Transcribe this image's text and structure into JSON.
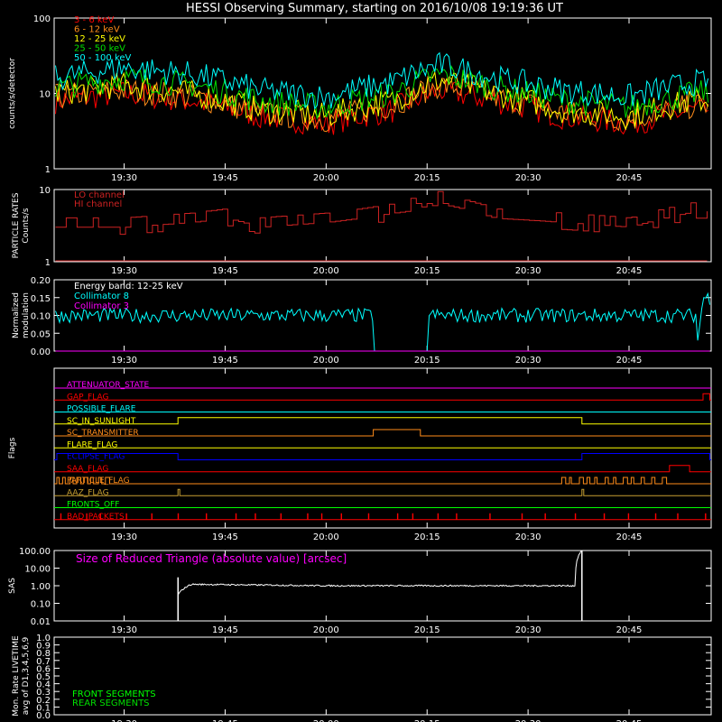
{
  "title": "HESSI Observing Summary, starting on 2016/10/08 19:19:36 UT",
  "time_ticks": [
    "19:30",
    "19:45",
    "20:00",
    "20:15",
    "20:30",
    "20:45"
  ],
  "colors": {
    "axes": "#ffffff",
    "red": "#ff0000",
    "orange": "#ff8c1a",
    "yellow": "#ffff00",
    "green": "#00e000",
    "cyan": "#00ffff",
    "magenta": "#ff00ff",
    "blue": "#0000ff",
    "darkred": "#cc2222",
    "lime": "#00ff00",
    "olive": "#c8a032"
  },
  "chart_data": [
    {
      "type": "line",
      "ylabel": "counts/s/detector",
      "scale": "log",
      "ylim": [
        1,
        100
      ],
      "y_ticks": [
        "1",
        "10",
        "100"
      ],
      "legend": [
        {
          "label": "3 - 6 keV",
          "color": "red"
        },
        {
          "label": "6 - 12 keV",
          "color": "orange"
        },
        {
          "label": "12 - 25 keV",
          "color": "yellow"
        },
        {
          "label": "25 - 50 keV",
          "color": "green"
        },
        {
          "label": "50 - 100 keV",
          "color": "cyan"
        }
      ],
      "series": [
        {
          "name": "3 - 6 keV",
          "color": "red",
          "x": [
            "19:20",
            "19:30",
            "19:40",
            "19:50",
            "20:00",
            "20:10",
            "20:17",
            "20:25",
            "20:35",
            "20:45",
            "20:55"
          ],
          "values": [
            8,
            10,
            8,
            5,
            4,
            6,
            11,
            8,
            5,
            4,
            6
          ]
        },
        {
          "name": "6 - 12 keV",
          "color": "orange",
          "x": [
            "19:20",
            "19:30",
            "19:40",
            "19:50",
            "20:00",
            "20:10",
            "20:17",
            "20:25",
            "20:35",
            "20:45",
            "20:55"
          ],
          "values": [
            9,
            11,
            9,
            5.5,
            4.5,
            7,
            13,
            9,
            5.5,
            4.5,
            7
          ]
        },
        {
          "name": "12 - 25 keV",
          "color": "yellow",
          "x": [
            "19:20",
            "19:30",
            "19:40",
            "19:50",
            "20:00",
            "20:10",
            "20:17",
            "20:25",
            "20:35",
            "20:45",
            "20:55"
          ],
          "values": [
            10,
            13,
            10,
            6,
            5,
            8,
            15,
            10,
            6,
            5,
            8
          ]
        },
        {
          "name": "25 - 50 keV",
          "color": "green",
          "x": [
            "19:20",
            "19:30",
            "19:40",
            "19:50",
            "20:00",
            "20:10",
            "20:17",
            "20:25",
            "20:35",
            "20:45",
            "20:55"
          ],
          "values": [
            12,
            16,
            13,
            8,
            6.5,
            10,
            18,
            12,
            8,
            6.5,
            10
          ]
        },
        {
          "name": "50 - 100 keV",
          "color": "cyan",
          "x": [
            "19:20",
            "19:30",
            "19:40",
            "19:50",
            "20:00",
            "20:10",
            "20:17",
            "20:25",
            "20:35",
            "20:45",
            "20:55"
          ],
          "values": [
            16,
            22,
            18,
            11,
            9,
            14,
            24,
            16,
            11,
            9,
            14
          ]
        }
      ]
    },
    {
      "type": "line",
      "ylabel": "PARTICLE RATES",
      "ylabel2": "Counts/s",
      "scale": "log",
      "ylim": [
        1,
        10
      ],
      "y_ticks": [
        "1",
        "10"
      ],
      "legend": [
        {
          "label": "LO channel",
          "color": "darkred"
        },
        {
          "label": "HI channel",
          "color": "darkred"
        }
      ],
      "series": [
        {
          "name": "LO channel",
          "color": "darkred",
          "x": [
            "19:20",
            "19:30",
            "19:40",
            "19:45",
            "19:50",
            "20:00",
            "20:05",
            "20:12",
            "20:15",
            "20:18",
            "20:25",
            "20:35",
            "20:45",
            "20:50",
            "20:55"
          ],
          "values": [
            3,
            3,
            3.5,
            4,
            3,
            3.5,
            4,
            5,
            8,
            6,
            4,
            3.5,
            3,
            4,
            5
          ]
        },
        {
          "name": "HI channel",
          "color": "darkred",
          "x": [
            "19:20",
            "20:55"
          ],
          "values": [
            1,
            1
          ]
        }
      ]
    },
    {
      "type": "line",
      "ylabel": "Normalized",
      "ylabel2": "modulation",
      "ylim": [
        0.0,
        0.2
      ],
      "y_ticks": [
        "0.00",
        "0.05",
        "0.10",
        "0.15",
        "0.20"
      ],
      "annotations": [
        "Energy band: 12-25 keV"
      ],
      "legend": [
        {
          "label": "Collimator 8",
          "color": "cyan"
        },
        {
          "label": "Collimator 3",
          "color": "magenta"
        }
      ],
      "series": [
        {
          "name": "Collimator 8",
          "color": "cyan",
          "x": [
            "19:20",
            "19:35",
            "19:50",
            "20:07",
            "20:07",
            "20:15",
            "20:15",
            "20:30",
            "20:45",
            "20:55",
            "20:55",
            "20:56"
          ],
          "values": [
            0.1,
            0.1,
            0.1,
            0.1,
            0.0,
            0.0,
            0.1,
            0.1,
            0.1,
            0.1,
            0.0,
            0.15
          ]
        },
        {
          "name": "Collimator 3",
          "color": "magenta",
          "x": [
            "19:20",
            "20:57"
          ],
          "values": [
            0.0,
            0.0
          ]
        }
      ]
    },
    {
      "type": "line",
      "ylabel": "Flags",
      "flags": [
        {
          "label": "ATTENUATOR_STATE",
          "color": "magenta",
          "on": []
        },
        {
          "label": "GAP_FLAG",
          "color": "red",
          "on": [
            [
              "20:56",
              "20:57"
            ]
          ]
        },
        {
          "label": "POSSIBLE_FLARE",
          "color": "cyan",
          "on": []
        },
        {
          "label": "SC_IN_SUNLIGHT",
          "color": "yellow",
          "on": [
            [
              "19:38",
              "20:38"
            ]
          ]
        },
        {
          "label": "SC_TRANSMITTER",
          "color": "orange",
          "on": [
            [
              "20:07",
              "20:14"
            ]
          ]
        },
        {
          "label": "FLARE_FLAG",
          "color": "yellow",
          "on": []
        },
        {
          "label": "ECLIPSE_FLAG",
          "color": "blue",
          "on": [
            [
              "19:20",
              "19:38"
            ],
            [
              "20:38",
              "20:57"
            ]
          ]
        },
        {
          "label": "SAA_FLAG",
          "color": "red",
          "on": [
            [
              "20:51",
              "20:54"
            ]
          ]
        },
        {
          "label": "PARTICLE_FLAG",
          "color": "orange",
          "on": [
            [
              "19:20",
              "19:28"
            ],
            [
              "20:35",
              "20:50"
            ]
          ]
        },
        {
          "label": "AAZ_FLAG",
          "color": "olive",
          "on": [
            [
              "19:38",
              "19:38"
            ],
            [
              "20:38",
              "20:38"
            ]
          ]
        },
        {
          "label": "FRONTS_OFF",
          "color": "lime",
          "on": []
        },
        {
          "label": "BAD_PACKETS",
          "color": "red",
          "on": [
            [
              "19:20",
              "20:57"
            ]
          ]
        }
      ]
    },
    {
      "type": "line",
      "ylabel": "SAS",
      "scale": "log",
      "ylim": [
        0.01,
        100
      ],
      "y_ticks": [
        "0.01",
        "0.10",
        "1.00",
        "10.00",
        "100.00"
      ],
      "annotations": [
        "Size of Reduced Triangle (absolute value) [arcsec]"
      ],
      "series": [
        {
          "name": "Size of Reduced Triangle (absolute value) [arcsec]",
          "color": "axes",
          "x": [
            "19:38",
            "19:40",
            "20:00",
            "20:20",
            "20:37",
            "20:38"
          ],
          "values": [
            0.3,
            1.2,
            1.0,
            1.0,
            1.0,
            100
          ]
        }
      ]
    },
    {
      "type": "line",
      "ylabel": "Mon. Rate LIVETIME",
      "ylabel2": "avg of D1,3,4,5,6,9",
      "ylim": [
        0.0,
        1.0
      ],
      "y_ticks": [
        "0.0",
        "0.1",
        "0.2",
        "0.3",
        "0.4",
        "0.5",
        "0.6",
        "0.7",
        "0.8",
        "0.9",
        "1.0"
      ],
      "legend": [
        {
          "label": "FRONT SEGMENTS",
          "color": "lime"
        },
        {
          "label": "REAR SEGMENTS",
          "color": "green"
        }
      ],
      "series": []
    }
  ]
}
